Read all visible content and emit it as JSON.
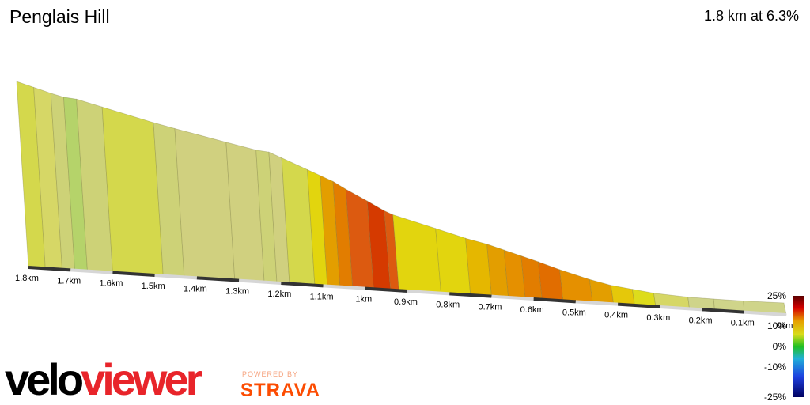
{
  "header": {
    "title": "Penglais Hill",
    "summary": "1.8 km at 6.3%"
  },
  "branding": {
    "logo_part1": "velo",
    "logo_part2": "viewer",
    "powered_by": "POWERED BY",
    "strava": "STRAVA"
  },
  "gradient_scale": {
    "labels": [
      "25%",
      "10%",
      "0%",
      "-10%",
      "-25%"
    ]
  },
  "chart_data": {
    "type": "area",
    "title": "Penglais Hill",
    "xlabel": "",
    "ylabel": "",
    "distance_ticks": [
      "1.8km",
      "1.7km",
      "1.6km",
      "1.5km",
      "1.4km",
      "1.3km",
      "1.2km",
      "1.1km",
      "1km",
      "0.9km",
      "0.8km",
      "0.7km",
      "0.6km",
      "0.5km",
      "0.4km",
      "0.3km",
      "0.2km",
      "0.1km",
      "0km"
    ],
    "xlim": [
      1.8,
      0
    ],
    "profile": [
      {
        "d": 1.8,
        "e": 113,
        "g": 7
      },
      {
        "d": 1.76,
        "e": 110,
        "g": 6
      },
      {
        "d": 1.72,
        "e": 107,
        "g": 4
      },
      {
        "d": 1.69,
        "e": 105,
        "g": 2
      },
      {
        "d": 1.66,
        "e": 104,
        "g": 4
      },
      {
        "d": 1.6,
        "e": 100,
        "g": 7
      },
      {
        "d": 1.48,
        "e": 92,
        "g": 4
      },
      {
        "d": 1.43,
        "e": 89,
        "g": 5
      },
      {
        "d": 1.31,
        "e": 82,
        "g": 5
      },
      {
        "d": 1.24,
        "e": 78,
        "g": 4
      },
      {
        "d": 1.21,
        "e": 77,
        "g": 5
      },
      {
        "d": 1.18,
        "e": 74,
        "g": 7
      },
      {
        "d": 1.12,
        "e": 68,
        "g": 10
      },
      {
        "d": 1.09,
        "e": 65,
        "g": 13
      },
      {
        "d": 1.06,
        "e": 62,
        "g": 15
      },
      {
        "d": 1.03,
        "e": 58,
        "g": 18
      },
      {
        "d": 0.98,
        "e": 52,
        "g": 22
      },
      {
        "d": 0.94,
        "e": 47,
        "g": 18
      },
      {
        "d": 0.92,
        "e": 45,
        "g": 10
      },
      {
        "d": 0.82,
        "e": 38,
        "g": 10
      },
      {
        "d": 0.75,
        "e": 33,
        "g": 12
      },
      {
        "d": 0.7,
        "e": 30,
        "g": 13
      },
      {
        "d": 0.66,
        "e": 27,
        "g": 14
      },
      {
        "d": 0.62,
        "e": 24,
        "g": 15
      },
      {
        "d": 0.58,
        "e": 21,
        "g": 16
      },
      {
        "d": 0.53,
        "e": 17,
        "g": 14
      },
      {
        "d": 0.46,
        "e": 12,
        "g": 13
      },
      {
        "d": 0.41,
        "e": 9,
        "g": 11
      },
      {
        "d": 0.36,
        "e": 7,
        "g": 9
      },
      {
        "d": 0.31,
        "e": 5,
        "g": 6
      },
      {
        "d": 0.23,
        "e": 3,
        "g": 3
      },
      {
        "d": 0.17,
        "e": 2,
        "g": 3
      },
      {
        "d": 0.1,
        "e": 1,
        "g": 3
      },
      {
        "d": 0.0,
        "e": 0,
        "g": 3
      }
    ],
    "colors": {
      "g2": "#b5d36a",
      "g3": "#cfd48a",
      "g4": "#cdd277",
      "g5": "#d0d07f",
      "g6": "#d6d766",
      "g7": "#d4d84c",
      "g9": "#dddc1c",
      "g10": "#e2d50e",
      "g11": "#e5c80a",
      "g12": "#e5b700",
      "g13": "#e39e00",
      "g14": "#e59000",
      "g15": "#e27d00",
      "g16": "#e16d00",
      "g18": "#dc5a10",
      "g22": "#d53a00"
    }
  }
}
